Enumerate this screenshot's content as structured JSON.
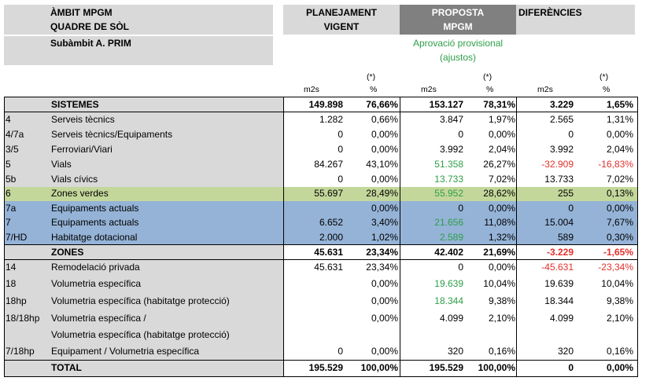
{
  "header": {
    "ambit_title": "ÀMBIT MPGM",
    "quadre_title": "QUADRE DE SÒL",
    "subambit": "Subàmbit A. PRIM",
    "planejament_line1": "PLANEJAMENT",
    "planejament_line2": "VIGENT",
    "proposta_line1": "PROPOSTA",
    "proposta_line2": "MPGM",
    "diferencies": "DIFERÈNCIES",
    "aprovacio_line1": "Aprovació provisional",
    "aprovacio_line2": "(ajustos)"
  },
  "units": {
    "m2s": "m2s",
    "pct": "%",
    "note": "(*)"
  },
  "rows": [
    {
      "code": "",
      "name": "SISTEMES",
      "v1": "149.898",
      "p1": "76,66%",
      "v2": "153.127",
      "p2": "78,31%",
      "v3": "3.229",
      "p3": "1,65%"
    },
    {
      "code": "4",
      "name": "Serveis tècnics",
      "v1": "1.282",
      "p1": "0,66%",
      "v2": "3.847",
      "p2": "1,97%",
      "v3": "2.565",
      "p3": "1,31%"
    },
    {
      "code": "4/7a",
      "name": "Serveis tècnics/Equipaments",
      "v1": "0",
      "p1": "0,00%",
      "v2": "0",
      "p2": "0,00%",
      "v3": "0",
      "p3": "0,00%"
    },
    {
      "code": "3/5",
      "name": "Ferroviari/Viari",
      "v1": "0",
      "p1": "0,00%",
      "v2": "3.992",
      "p2": "2,04%",
      "v3": "3.992",
      "p3": "2,04%"
    },
    {
      "code": "5",
      "name": "Vials",
      "v1": "84.267",
      "p1": "43,10%",
      "v2": "51.358",
      "p2": "26,27%",
      "v3": "-32.909",
      "p3": "-16,83%"
    },
    {
      "code": "5b",
      "name": "Vials cívics",
      "v1": "0",
      "p1": "0,00%",
      "v2": "13.733",
      "p2": "7,02%",
      "v3": "13.733",
      "p3": "7,02%"
    },
    {
      "code": "6",
      "name": "Zones verdes",
      "v1": "55.697",
      "p1": "28,49%",
      "v2": "55.952",
      "p2": "28,62%",
      "v3": "255",
      "p3": "0,13%"
    },
    {
      "code": "7a",
      "name": "Equipaments actuals",
      "v1": "",
      "p1": "0,00%",
      "v2": "0",
      "p2": "0,00%",
      "v3": "0",
      "p3": "0,00%"
    },
    {
      "code": "7",
      "name": "Equipaments actuals",
      "v1": "6.652",
      "p1": "3,40%",
      "v2": "21.656",
      "p2": "11,08%",
      "v3": "15.004",
      "p3": "7,67%"
    },
    {
      "code": "7/HD",
      "name": "Habitatge dotacional",
      "v1": "2.000",
      "p1": "1,02%",
      "v2": "2.589",
      "p2": "1,32%",
      "v3": "589",
      "p3": "0,30%"
    },
    {
      "code": "",
      "name": "ZONES",
      "v1": "45.631",
      "p1": "23,34%",
      "v2": "42.402",
      "p2": "21,69%",
      "v3": "-3.229",
      "p3": "-1,65%"
    },
    {
      "code": "14",
      "name": "Remodelació privada",
      "v1": "45.631",
      "p1": "23,34%",
      "v2": "0",
      "p2": "0,00%",
      "v3": "-45.631",
      "p3": "-23,34%"
    },
    {
      "code": "18",
      "name": "Volumetria específica",
      "v1": "",
      "p1": "0,00%",
      "v2": "19.639",
      "p2": "10,04%",
      "v3": "19.639",
      "p3": "10,04%"
    },
    {
      "code": "18hp",
      "name": "Volumetria específica (habitatge protecció)",
      "v1": "",
      "p1": "0,00%",
      "v2": "18.344",
      "p2": "9,38%",
      "v3": "18.344",
      "p3": "9,38%"
    },
    {
      "code": "18/18hp",
      "name": "Volumetria específica /",
      "v1": "",
      "p1": "0,00%",
      "v2": "4.099",
      "p2": "2,10%",
      "v3": "4.099",
      "p3": "2,10%"
    },
    {
      "code": "",
      "name": "Volumetria específica (habitatge protecció)",
      "v1": "",
      "p1": "",
      "v2": "",
      "p2": "",
      "v3": "",
      "p3": ""
    },
    {
      "code": "7/18hp",
      "name": "Equipament / Volumetria específica",
      "v1": "0",
      "p1": "0,00%",
      "v2": "320",
      "p2": "0,16%",
      "v3": "320",
      "p3": "0,16%"
    },
    {
      "code": "",
      "name": "TOTAL",
      "v1": "195.529",
      "p1": "100,00%",
      "v2": "195.529",
      "p2": "100,00%",
      "v3": "0",
      "p3": "0,00%"
    }
  ],
  "colors": {
    "gray": "#d9d9d9",
    "dark_gray": "#808080",
    "green_row": "#c4d79b",
    "blue_row": "#95b3d7",
    "green_text": "#2e9e48",
    "red_text": "#e0302c"
  }
}
